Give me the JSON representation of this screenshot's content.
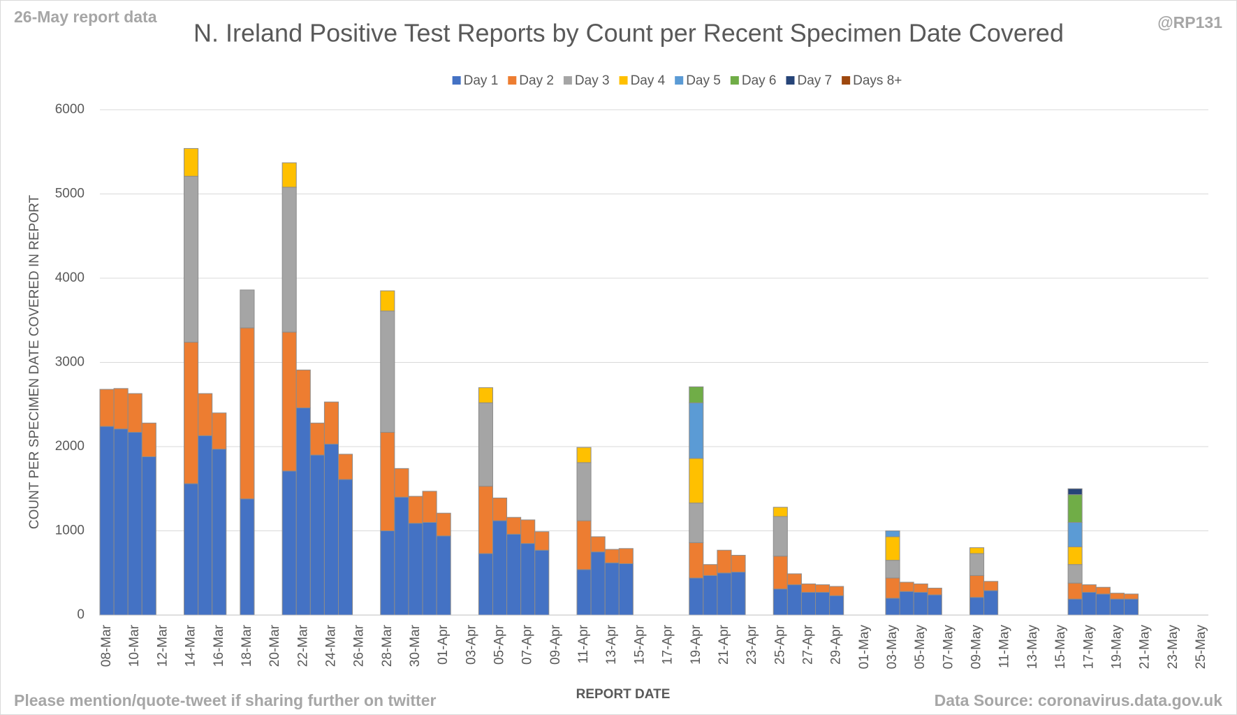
{
  "chart_data": {
    "type": "stacked_bar",
    "title": "N. Ireland Positive Test Reports by Count per Recent Specimen Date Covered",
    "subtitle_left": "26-May report data",
    "subtitle_right": "@RP131",
    "footer_left": "Please mention/quote-tweet if sharing further on twitter",
    "footer_right": "Data Source: coronavirus.data.gov.uk",
    "x_label": "REPORT DATE",
    "y_label": "COUNT PER SPECIMEN DATE COVERED IN REPORT",
    "categories": [
      "08-Mar",
      null,
      "10-Mar",
      null,
      "12-Mar",
      null,
      "14-Mar",
      null,
      "16-Mar",
      null,
      "18-Mar",
      null,
      "20-Mar",
      null,
      "22-Mar",
      null,
      "24-Mar",
      null,
      "26-Mar",
      null,
      "28-Mar",
      null,
      "30-Mar",
      null,
      "01-Apr",
      null,
      "03-Apr",
      null,
      "05-Apr",
      null,
      "07-Apr",
      null,
      "09-Apr",
      null,
      "11-Apr",
      null,
      "13-Apr",
      null,
      "15-Apr",
      null,
      "17-Apr",
      null,
      "19-Apr",
      null,
      "21-Apr",
      null,
      "23-Apr",
      null,
      "25-Apr",
      null,
      "27-Apr",
      null,
      "29-Apr",
      null,
      "01-May",
      null,
      "03-May",
      null,
      "05-May",
      null,
      "07-May",
      null,
      "09-May",
      null,
      "11-May",
      null,
      "13-May",
      null,
      "15-May",
      null,
      "17-May",
      null,
      "19-May",
      null,
      "21-May",
      null,
      "23-May",
      null,
      "25-May"
    ],
    "series": [
      {
        "name": "Day 1",
        "color": "#4472c4",
        "values": [
          2240,
          2210,
          2170,
          1880,
          0,
          0,
          1560,
          2130,
          1970,
          0,
          1380,
          0,
          0,
          1710,
          2460,
          1900,
          2030,
          1610,
          0,
          0,
          1000,
          1400,
          1090,
          1100,
          940,
          0,
          0,
          730,
          1120,
          960,
          850,
          770,
          0,
          0,
          540,
          750,
          620,
          610,
          0,
          0,
          0,
          0,
          440,
          470,
          500,
          510,
          0,
          0,
          310,
          360,
          270,
          270,
          230,
          0,
          0,
          0,
          200,
          280,
          270,
          240,
          0,
          0,
          210,
          290,
          0,
          0,
          0,
          0,
          0,
          190,
          270,
          250,
          190,
          190,
          0,
          0,
          0,
          0,
          0
        ]
      },
      {
        "name": "Day 2",
        "color": "#ed7d31",
        "values": [
          440,
          480,
          460,
          400,
          0,
          0,
          1680,
          500,
          430,
          0,
          2030,
          0,
          0,
          1650,
          450,
          380,
          500,
          300,
          0,
          0,
          1170,
          340,
          320,
          370,
          270,
          0,
          0,
          800,
          270,
          200,
          280,
          220,
          0,
          0,
          580,
          180,
          160,
          180,
          0,
          0,
          0,
          0,
          420,
          130,
          270,
          200,
          0,
          0,
          390,
          130,
          100,
          90,
          110,
          0,
          0,
          0,
          240,
          110,
          100,
          80,
          0,
          0,
          260,
          110,
          0,
          0,
          0,
          0,
          0,
          190,
          90,
          80,
          70,
          60,
          0,
          0,
          0,
          0,
          0
        ]
      },
      {
        "name": "Day 3",
        "color": "#a5a5a5",
        "values": [
          0,
          0,
          0,
          0,
          0,
          0,
          1970,
          0,
          0,
          0,
          450,
          0,
          0,
          1720,
          0,
          0,
          0,
          0,
          0,
          0,
          1440,
          0,
          0,
          0,
          0,
          0,
          0,
          990,
          0,
          0,
          0,
          0,
          0,
          0,
          690,
          0,
          0,
          0,
          0,
          0,
          0,
          0,
          470,
          0,
          0,
          0,
          0,
          0,
          470,
          0,
          0,
          0,
          0,
          0,
          0,
          0,
          210,
          0,
          0,
          0,
          0,
          0,
          260,
          0,
          0,
          0,
          0,
          0,
          0,
          220,
          0,
          0,
          0,
          0,
          0,
          0,
          0,
          0,
          0
        ]
      },
      {
        "name": "Day 4",
        "color": "#ffc000",
        "values": [
          0,
          0,
          0,
          0,
          0,
          0,
          330,
          0,
          0,
          0,
          0,
          0,
          0,
          290,
          0,
          0,
          0,
          0,
          0,
          0,
          240,
          0,
          0,
          0,
          0,
          0,
          0,
          180,
          0,
          0,
          0,
          0,
          0,
          0,
          180,
          0,
          0,
          0,
          0,
          0,
          0,
          0,
          530,
          0,
          0,
          0,
          0,
          0,
          110,
          0,
          0,
          0,
          0,
          0,
          0,
          0,
          280,
          0,
          0,
          0,
          0,
          0,
          70,
          0,
          0,
          0,
          0,
          0,
          0,
          210,
          0,
          0,
          0,
          0,
          0,
          0,
          0,
          0,
          0
        ]
      },
      {
        "name": "Day 5",
        "color": "#5b9bd5",
        "values": [
          0,
          0,
          0,
          0,
          0,
          0,
          0,
          0,
          0,
          0,
          0,
          0,
          0,
          0,
          0,
          0,
          0,
          0,
          0,
          0,
          0,
          0,
          0,
          0,
          0,
          0,
          0,
          0,
          0,
          0,
          0,
          0,
          0,
          0,
          0,
          0,
          0,
          0,
          0,
          0,
          0,
          0,
          660,
          0,
          0,
          0,
          0,
          0,
          0,
          0,
          0,
          0,
          0,
          0,
          0,
          0,
          70,
          0,
          0,
          0,
          0,
          0,
          0,
          0,
          0,
          0,
          0,
          0,
          0,
          290,
          0,
          0,
          0,
          0,
          0,
          0,
          0,
          0,
          0
        ]
      },
      {
        "name": "Day 6",
        "color": "#70ad47",
        "values": [
          0,
          0,
          0,
          0,
          0,
          0,
          0,
          0,
          0,
          0,
          0,
          0,
          0,
          0,
          0,
          0,
          0,
          0,
          0,
          0,
          0,
          0,
          0,
          0,
          0,
          0,
          0,
          0,
          0,
          0,
          0,
          0,
          0,
          0,
          0,
          0,
          0,
          0,
          0,
          0,
          0,
          0,
          190,
          0,
          0,
          0,
          0,
          0,
          0,
          0,
          0,
          0,
          0,
          0,
          0,
          0,
          0,
          0,
          0,
          0,
          0,
          0,
          0,
          0,
          0,
          0,
          0,
          0,
          0,
          330,
          0,
          0,
          0,
          0,
          0,
          0,
          0,
          0,
          0
        ]
      },
      {
        "name": "Day 7",
        "color": "#264478",
        "values": [
          0,
          0,
          0,
          0,
          0,
          0,
          0,
          0,
          0,
          0,
          0,
          0,
          0,
          0,
          0,
          0,
          0,
          0,
          0,
          0,
          0,
          0,
          0,
          0,
          0,
          0,
          0,
          0,
          0,
          0,
          0,
          0,
          0,
          0,
          0,
          0,
          0,
          0,
          0,
          0,
          0,
          0,
          0,
          0,
          0,
          0,
          0,
          0,
          0,
          0,
          0,
          0,
          0,
          0,
          0,
          0,
          0,
          0,
          0,
          0,
          0,
          0,
          0,
          0,
          0,
          0,
          0,
          0,
          0,
          70,
          0,
          0,
          0,
          0,
          0,
          0,
          0,
          0,
          0
        ]
      },
      {
        "name": "Days 8+",
        "color": "#9e480e",
        "values": [
          0,
          0,
          0,
          0,
          0,
          0,
          0,
          0,
          0,
          0,
          0,
          0,
          0,
          0,
          0,
          0,
          0,
          0,
          0,
          0,
          0,
          0,
          0,
          0,
          0,
          0,
          0,
          0,
          0,
          0,
          0,
          0,
          0,
          0,
          0,
          0,
          0,
          0,
          0,
          0,
          0,
          0,
          0,
          0,
          0,
          0,
          0,
          0,
          0,
          0,
          0,
          0,
          0,
          0,
          0,
          0,
          0,
          0,
          0,
          0,
          0,
          0,
          0,
          0,
          0,
          0,
          0,
          0,
          0,
          0,
          0,
          0,
          0,
          0,
          0,
          0,
          0,
          0,
          0
        ]
      }
    ],
    "ylim": [
      0,
      6000
    ],
    "yticks": [
      0,
      1000,
      2000,
      3000,
      4000,
      5000,
      6000
    ],
    "grid": true,
    "legend": "top"
  }
}
